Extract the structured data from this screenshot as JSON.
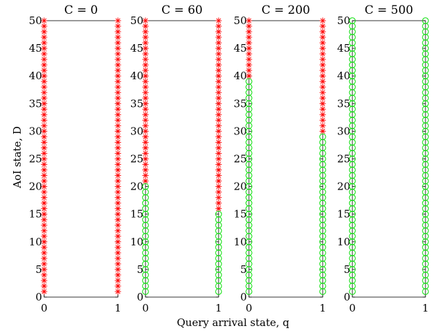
{
  "figure": {
    "xlabel": "Query arrival state, q",
    "ylabel": "AoI state, D"
  },
  "colors": {
    "action_star": "#ff0000",
    "action_circle": "#00dd00",
    "axis": "#000000"
  },
  "chart_data": [
    {
      "type": "scatter",
      "title": "C = 0",
      "x_ticks": [
        "0",
        "1"
      ],
      "y_ticks": [
        "0",
        "5",
        "10",
        "15",
        "20",
        "25",
        "30",
        "35",
        "40",
        "45",
        "50"
      ],
      "xlim": [
        0,
        1
      ],
      "ylim": [
        0,
        50
      ],
      "series": [
        {
          "marker": "star",
          "color": "#ff0000",
          "points": [
            {
              "q": 0,
              "D": [
                1,
                50
              ]
            },
            {
              "q": 1,
              "D": [
                1,
                50
              ]
            }
          ]
        },
        {
          "marker": "circle",
          "color": "#00dd00",
          "points": []
        }
      ]
    },
    {
      "type": "scatter",
      "title": "C = 60",
      "x_ticks": [
        "0",
        "1"
      ],
      "y_ticks": [
        "0",
        "5",
        "10",
        "15",
        "20",
        "25",
        "30",
        "35",
        "40",
        "45",
        "50"
      ],
      "xlim": [
        0,
        1
      ],
      "ylim": [
        0,
        50
      ],
      "series": [
        {
          "marker": "star",
          "color": "#ff0000",
          "points": [
            {
              "q": 0,
              "D": [
                21,
                50
              ]
            },
            {
              "q": 1,
              "D": [
                16,
                50
              ]
            }
          ]
        },
        {
          "marker": "circle",
          "color": "#00dd00",
          "points": [
            {
              "q": 0,
              "D": [
                1,
                20
              ]
            },
            {
              "q": 1,
              "D": [
                1,
                15
              ]
            }
          ]
        }
      ]
    },
    {
      "type": "scatter",
      "title": "C = 200",
      "x_ticks": [
        "0",
        "1"
      ],
      "y_ticks": [
        "0",
        "5",
        "10",
        "15",
        "20",
        "25",
        "30",
        "35",
        "40",
        "45",
        "50"
      ],
      "xlim": [
        0,
        1
      ],
      "ylim": [
        0,
        50
      ],
      "series": [
        {
          "marker": "star",
          "color": "#ff0000",
          "points": [
            {
              "q": 0,
              "D": [
                40,
                50
              ]
            },
            {
              "q": 1,
              "D": [
                30,
                50
              ]
            }
          ]
        },
        {
          "marker": "circle",
          "color": "#00dd00",
          "points": [
            {
              "q": 0,
              "D": [
                1,
                39
              ]
            },
            {
              "q": 1,
              "D": [
                1,
                29
              ]
            }
          ]
        }
      ]
    },
    {
      "type": "scatter",
      "title": "C = 500",
      "x_ticks": [
        "0",
        "1"
      ],
      "y_ticks": [
        "0",
        "5",
        "10",
        "15",
        "20",
        "25",
        "30",
        "35",
        "40",
        "45",
        "50"
      ],
      "xlim": [
        0,
        1
      ],
      "ylim": [
        0,
        50
      ],
      "series": [
        {
          "marker": "star",
          "color": "#ff0000",
          "points": []
        },
        {
          "marker": "circle",
          "color": "#00dd00",
          "points": [
            {
              "q": 0,
              "D": [
                1,
                50
              ]
            },
            {
              "q": 1,
              "D": [
                1,
                50
              ]
            }
          ]
        }
      ]
    }
  ]
}
